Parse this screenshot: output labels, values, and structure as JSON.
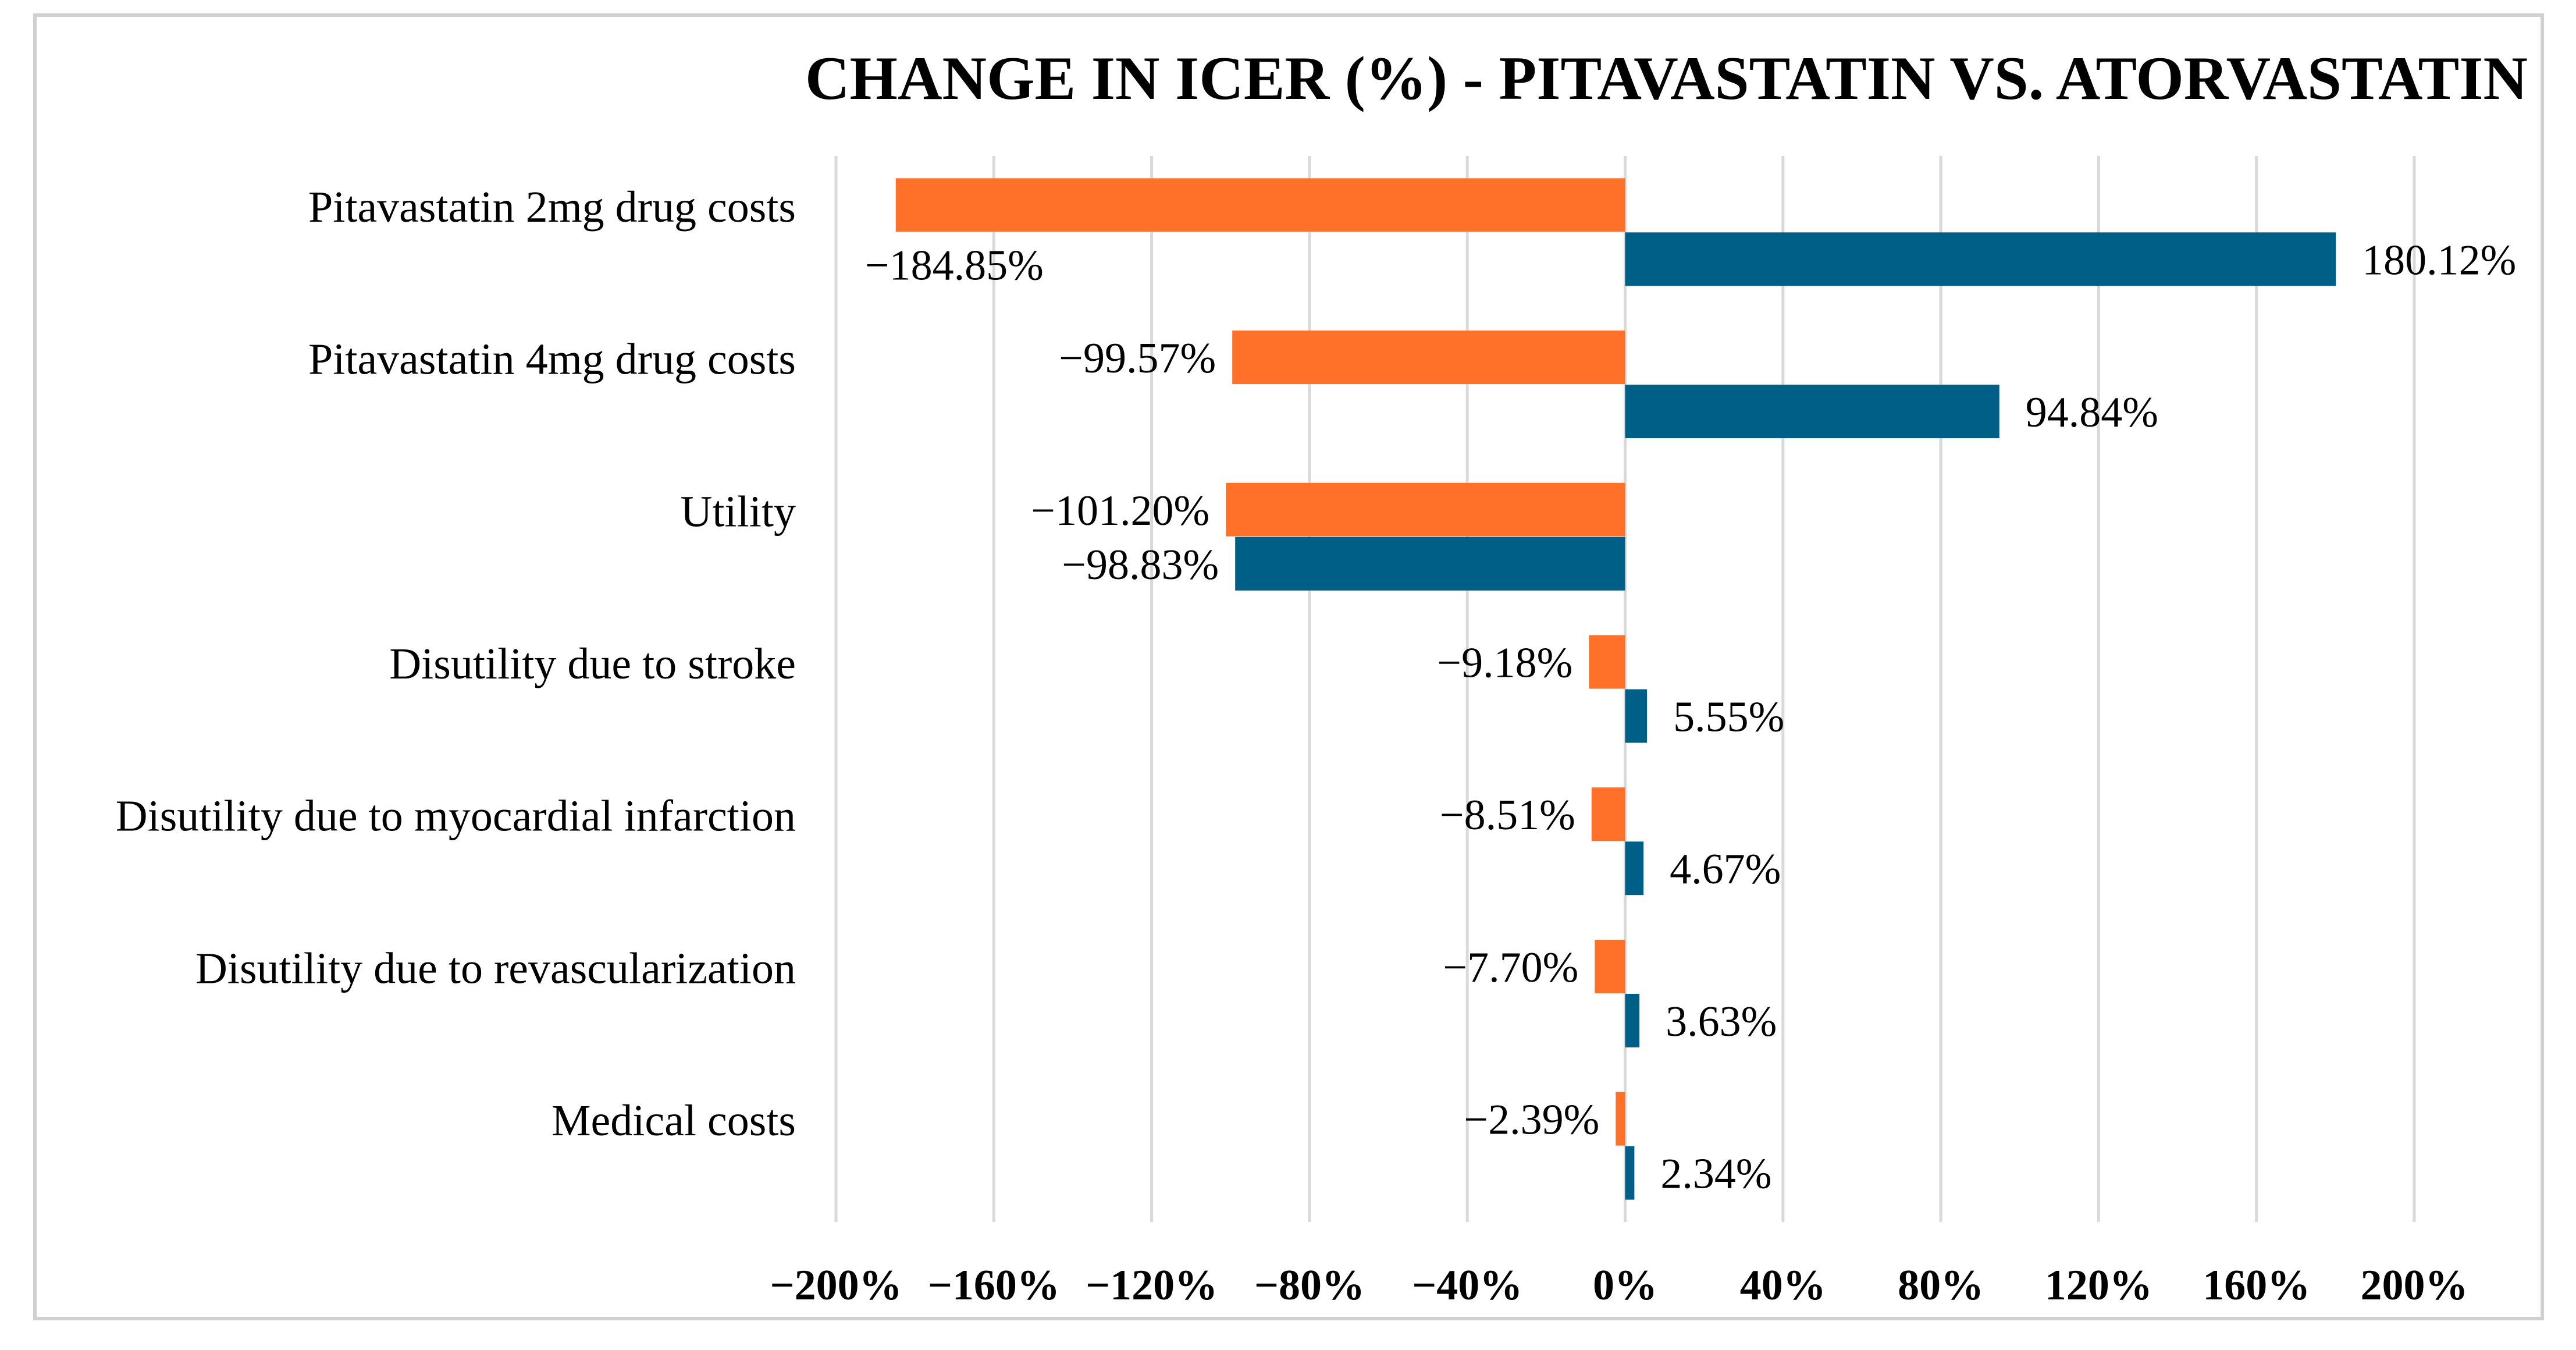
{
  "chart_data": {
    "type": "bar",
    "orientation": "horizontal",
    "title": "CHANGE IN ICER (%) - PITAVASTATIN VS. ATORVASTATIN",
    "xlabel": "",
    "ylabel": "",
    "xlim": [
      -200,
      200
    ],
    "grid": true,
    "legend": "none",
    "categories": [
      "Pitavastatin 2mg drug costs",
      "Pitavastatin 4mg drug costs",
      "Utility",
      "Disutility due to stroke",
      "Disutility due to myocardial infarction",
      "Disutility due to revascularization",
      "Medical costs"
    ],
    "series": [
      {
        "color": "#FF7029",
        "values": [
          -184.85,
          -99.57,
          -101.2,
          -9.18,
          -8.51,
          -7.7,
          -2.39
        ],
        "labels": [
          "−184.85%",
          "−99.57%",
          "−101.20%",
          "−9.18%",
          "−8.51%",
          "−7.70%",
          "−2.39%"
        ]
      },
      {
        "color": "#005F86",
        "values": [
          180.12,
          94.84,
          -98.83,
          5.55,
          4.67,
          3.63,
          2.34
        ],
        "labels": [
          "180.12%",
          "94.84%",
          "−98.83%",
          "5.55%",
          "4.67%",
          "3.63%",
          "2.34%"
        ]
      }
    ],
    "x_ticks": [
      -200,
      -160,
      -120,
      -80,
      -40,
      0,
      40,
      80,
      120,
      160,
      200
    ],
    "x_tick_labels": [
      "−200%",
      "−160%",
      "−120%",
      "−80%",
      "−40%",
      "0%",
      "40%",
      "80%",
      "120%",
      "160%",
      "200%"
    ]
  }
}
